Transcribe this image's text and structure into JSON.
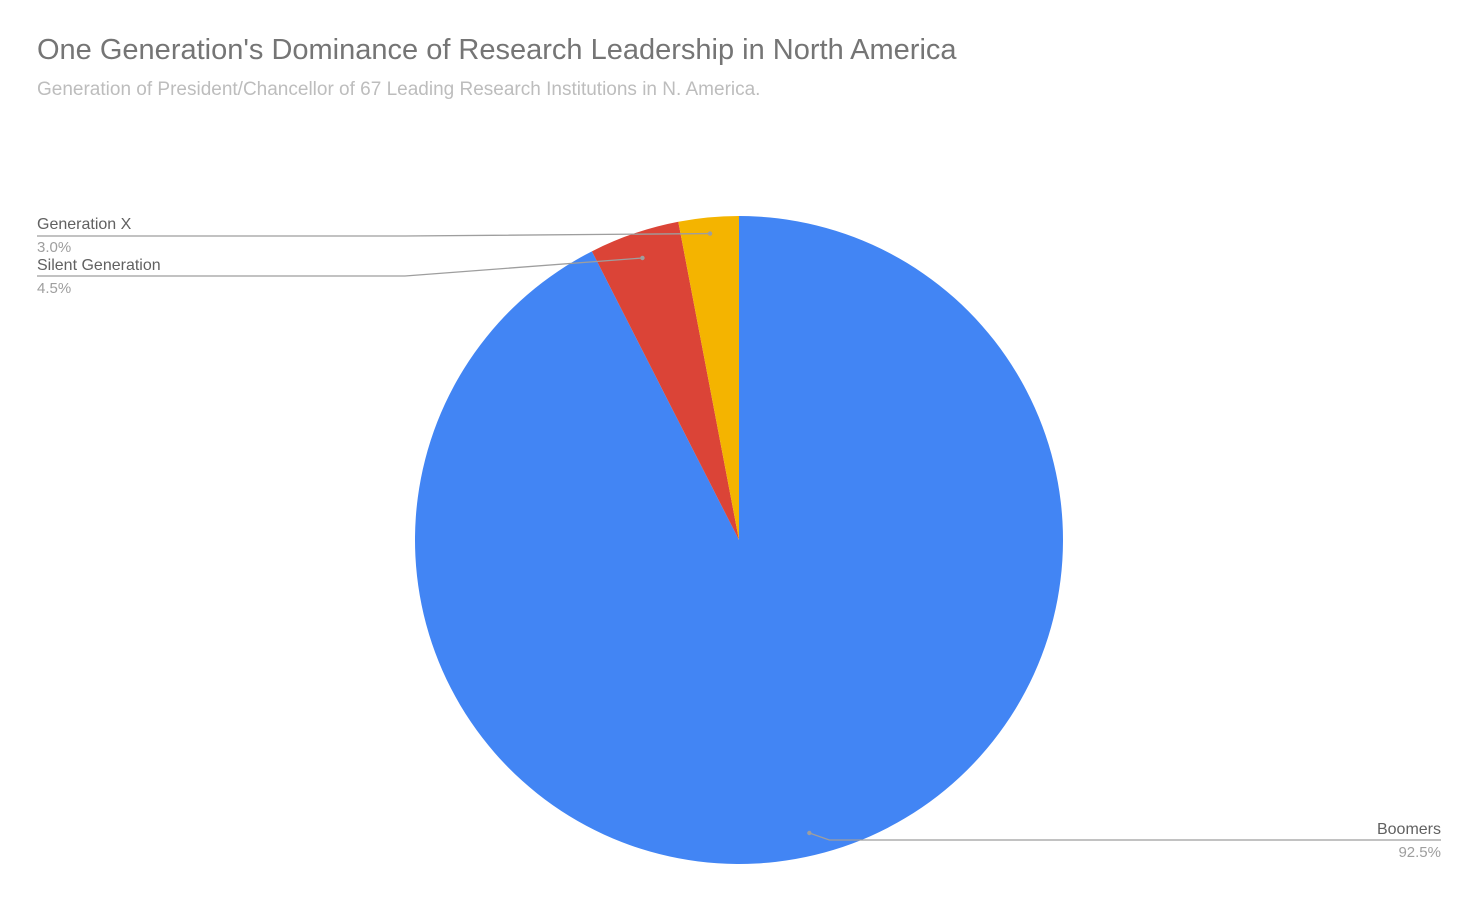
{
  "chart_data": {
    "type": "pie",
    "title": "One Generation's Dominance of Research Leadership in North America",
    "subtitle": "Generation of President/Chancellor of 67 Leading Research Institutions in N. America.",
    "start_angle_deg": 0,
    "direction": "clockwise",
    "slices": [
      {
        "label": "Boomers",
        "value": 92.5,
        "value_label": "92.5%",
        "color": "#4285f4"
      },
      {
        "label": "Silent Generation",
        "value": 4.5,
        "value_label": "4.5%",
        "color": "#db4437"
      },
      {
        "label": "Generation X",
        "value": 3.0,
        "value_label": "3.0%",
        "color": "#f4b400"
      }
    ],
    "leader_line_color": "#9e9e9e"
  }
}
